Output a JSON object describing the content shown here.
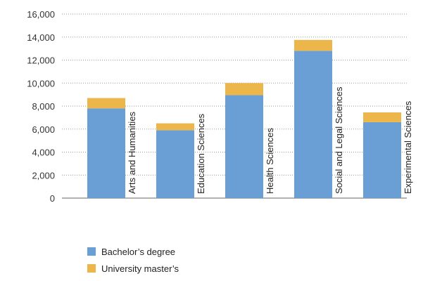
{
  "chart_data": {
    "type": "bar",
    "stacked": true,
    "categories": [
      "Arts and Humanities",
      "Education Sciences",
      "Health Sciences",
      "Social and Legal Sciences",
      "Experimental Sciences"
    ],
    "series": [
      {
        "name": "Bachelor’s degree",
        "color": "#6a9fd6",
        "values": [
          7800,
          5900,
          8950,
          12800,
          6600
        ]
      },
      {
        "name": "University master’s",
        "color": "#ecb64b",
        "values": [
          900,
          600,
          1050,
          950,
          850
        ]
      }
    ],
    "y_ticks": [
      "0",
      "2,000",
      "4,000",
      "6,000",
      "8,000",
      "10,000",
      "12,000",
      "14,000",
      "16,000"
    ],
    "ylim": [
      0,
      16000
    ],
    "grid": true,
    "legend_position": "bottom-left",
    "title": "",
    "xlabel": "",
    "ylabel": ""
  }
}
